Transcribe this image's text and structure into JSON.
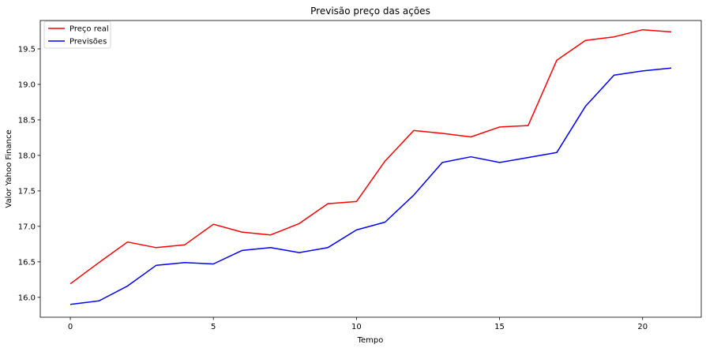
{
  "chart_data": {
    "type": "line",
    "title": "Previsão preço das ações",
    "xlabel": "Tempo",
    "ylabel": "Valor Yahoo Finance",
    "x": [
      0,
      1,
      2,
      3,
      4,
      5,
      6,
      7,
      8,
      9,
      10,
      11,
      12,
      13,
      14,
      15,
      16,
      17,
      18,
      19,
      20,
      21
    ],
    "xlim": [
      -1.05,
      22.05
    ],
    "ylim": [
      15.72,
      19.9
    ],
    "xticks": [
      0,
      5,
      10,
      15,
      20
    ],
    "xtick_labels": [
      "0",
      "5",
      "10",
      "15",
      "20"
    ],
    "yticks": [
      16.0,
      16.5,
      17.0,
      17.5,
      18.0,
      18.5,
      19.0,
      19.5
    ],
    "ytick_labels": [
      "16.0",
      "16.5",
      "17.0",
      "17.5",
      "18.0",
      "18.5",
      "19.0",
      "19.5"
    ],
    "grid": false,
    "legend_position": "top-left",
    "series": [
      {
        "name": "Preço real",
        "color": "#ff0000",
        "values": [
          16.19,
          16.49,
          16.78,
          16.7,
          16.74,
          17.03,
          16.92,
          16.88,
          17.04,
          17.32,
          17.35,
          17.92,
          18.35,
          18.31,
          18.26,
          18.4,
          18.42,
          19.34,
          19.62,
          19.67,
          19.77,
          19.74
        ]
      },
      {
        "name": "Previsões",
        "color": "#0000ff",
        "values": [
          15.9,
          15.95,
          16.16,
          16.45,
          16.49,
          16.47,
          16.66,
          16.7,
          16.63,
          16.7,
          16.95,
          17.06,
          17.44,
          17.9,
          17.98,
          17.9,
          17.97,
          18.04,
          18.69,
          19.13,
          19.19,
          19.23
        ]
      }
    ]
  }
}
